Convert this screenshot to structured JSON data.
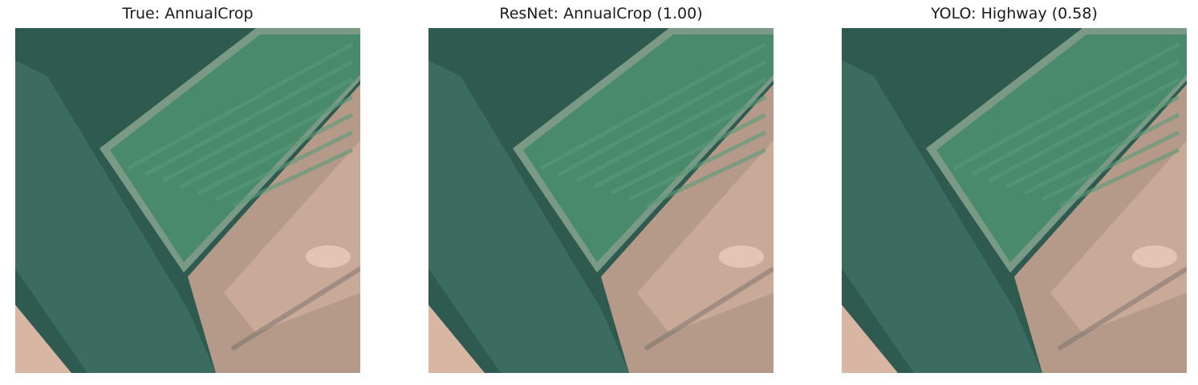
{
  "panels": [
    {
      "title": "True: AnnualCrop"
    },
    {
      "title": "ResNet: AnnualCrop (1.00)"
    },
    {
      "title": "YOLO: Highway (0.58)"
    }
  ],
  "colors": {
    "dark_field": "#2e5a50",
    "crop_field": "#4a8a6c",
    "crop_stripe": "#5a9a78",
    "field_border": "#7a9a86",
    "road_strip": "#3e6e62",
    "bare_soil": "#b59a8a",
    "soil_light": "#d9b6a4",
    "soil_highlight": "#ecd2c2",
    "soil_dark_track": "#6f6a64"
  }
}
